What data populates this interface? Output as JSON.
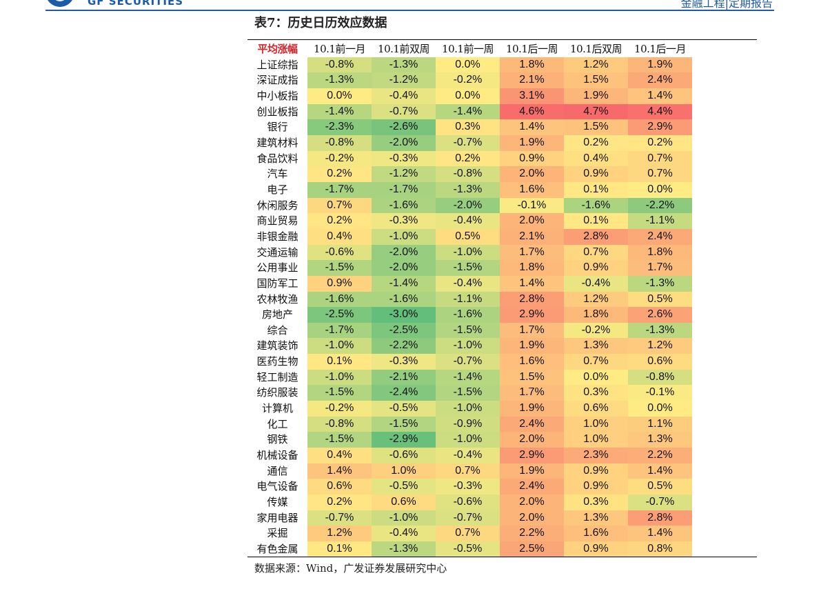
{
  "header": {
    "brand": "GF SECURITIES",
    "report_tag": "金融工程|定期报告",
    "brand_color": "#1d5aa8"
  },
  "table": {
    "title": "表7：历史日历效应数据",
    "corner_label": "平均涨幅",
    "columns": [
      "10.1前一月",
      "10.1前双周",
      "10.1前一周",
      "10.1后一周",
      "10.1后双周",
      "10.1后一月"
    ],
    "rows": [
      {
        "name": "上证综指",
        "values": [
          -0.8,
          -1.3,
          0.0,
          1.8,
          1.2,
          1.9
        ]
      },
      {
        "name": "深证成指",
        "values": [
          -1.3,
          -1.2,
          -0.2,
          2.1,
          1.5,
          2.4
        ]
      },
      {
        "name": "中小板指",
        "values": [
          0.0,
          -0.4,
          0.0,
          3.1,
          1.9,
          1.4
        ]
      },
      {
        "name": "创业板指",
        "values": [
          -1.4,
          -0.7,
          -1.4,
          4.6,
          4.7,
          4.4
        ]
      },
      {
        "name": "银行",
        "values": [
          -2.3,
          -2.6,
          0.3,
          1.4,
          1.5,
          2.9
        ]
      },
      {
        "name": "建筑材料",
        "values": [
          -0.8,
          -2.0,
          -0.7,
          1.9,
          0.2,
          0.2
        ]
      },
      {
        "name": "食品饮料",
        "values": [
          -0.2,
          -0.3,
          0.2,
          0.9,
          0.4,
          0.7
        ]
      },
      {
        "name": "汽车",
        "values": [
          0.2,
          -1.2,
          -0.8,
          2.0,
          0.9,
          0.7
        ]
      },
      {
        "name": "电子",
        "values": [
          -1.7,
          -1.7,
          -1.3,
          1.6,
          0.1,
          0.0
        ]
      },
      {
        "name": "休闲服务",
        "values": [
          0.7,
          -1.6,
          -2.0,
          -0.1,
          -1.6,
          -2.2
        ]
      },
      {
        "name": "商业贸易",
        "values": [
          0.2,
          -0.3,
          -0.4,
          2.0,
          0.1,
          -1.1
        ]
      },
      {
        "name": "非银金融",
        "values": [
          0.4,
          -1.0,
          0.5,
          2.1,
          2.8,
          2.4
        ]
      },
      {
        "name": "交通运输",
        "values": [
          -0.6,
          -2.0,
          -1.0,
          1.7,
          0.7,
          1.8
        ]
      },
      {
        "name": "公用事业",
        "values": [
          -1.5,
          -2.0,
          -1.5,
          1.8,
          0.9,
          1.7
        ]
      },
      {
        "name": "国防军工",
        "values": [
          0.9,
          -1.4,
          -0.4,
          1.4,
          -0.4,
          -1.3
        ]
      },
      {
        "name": "农林牧渔",
        "values": [
          -1.6,
          -1.6,
          -1.1,
          2.8,
          1.2,
          0.5
        ]
      },
      {
        "name": "房地产",
        "values": [
          -2.5,
          -3.0,
          -1.6,
          2.9,
          1.8,
          2.6
        ]
      },
      {
        "name": "综合",
        "values": [
          -1.7,
          -2.5,
          -1.5,
          1.7,
          -0.2,
          -1.3
        ]
      },
      {
        "name": "建筑装饰",
        "values": [
          -1.0,
          -2.2,
          -1.0,
          1.9,
          1.3,
          1.2
        ]
      },
      {
        "name": "医药生物",
        "values": [
          0.1,
          -0.3,
          -0.7,
          1.6,
          0.7,
          0.6
        ]
      },
      {
        "name": "轻工制造",
        "values": [
          -1.0,
          -2.1,
          -1.4,
          1.5,
          0.0,
          -0.8
        ]
      },
      {
        "name": "纺织服装",
        "values": [
          -1.5,
          -2.4,
          -1.5,
          1.7,
          0.3,
          -0.1
        ]
      },
      {
        "name": "计算机",
        "values": [
          -0.2,
          -0.5,
          -1.0,
          1.9,
          0.6,
          0.0
        ]
      },
      {
        "name": "化工",
        "values": [
          -0.8,
          -1.5,
          -0.9,
          2.4,
          1.0,
          1.1
        ]
      },
      {
        "name": "钢铁",
        "values": [
          -1.5,
          -2.9,
          -1.0,
          2.0,
          1.0,
          1.3
        ]
      },
      {
        "name": "机械设备",
        "values": [
          0.4,
          -0.6,
          -0.4,
          2.9,
          2.3,
          2.2
        ]
      },
      {
        "name": "通信",
        "values": [
          1.4,
          1.0,
          0.7,
          1.9,
          0.9,
          1.4
        ]
      },
      {
        "name": "电气设备",
        "values": [
          0.6,
          -0.5,
          -0.3,
          2.4,
          0.9,
          0.5
        ]
      },
      {
        "name": "传媒",
        "values": [
          0.2,
          0.6,
          -0.6,
          2.0,
          0.3,
          -0.7
        ]
      },
      {
        "name": "家用电器",
        "values": [
          -0.7,
          -1.0,
          -0.7,
          2.0,
          1.3,
          2.8
        ]
      },
      {
        "name": "采掘",
        "values": [
          1.2,
          -0.4,
          0.7,
          2.2,
          1.6,
          1.4
        ]
      },
      {
        "name": "有色金属",
        "values": [
          0.1,
          -1.3,
          -0.5,
          2.5,
          0.9,
          0.8
        ]
      }
    ],
    "heat_colors": {
      "low": "#63be7b",
      "mid": "#ffeb84",
      "high": "#f8696b"
    },
    "heat_range": [
      -3.0,
      0.0,
      4.7
    ]
  },
  "source": "数据来源：Wind，广发证券发展研究中心"
}
